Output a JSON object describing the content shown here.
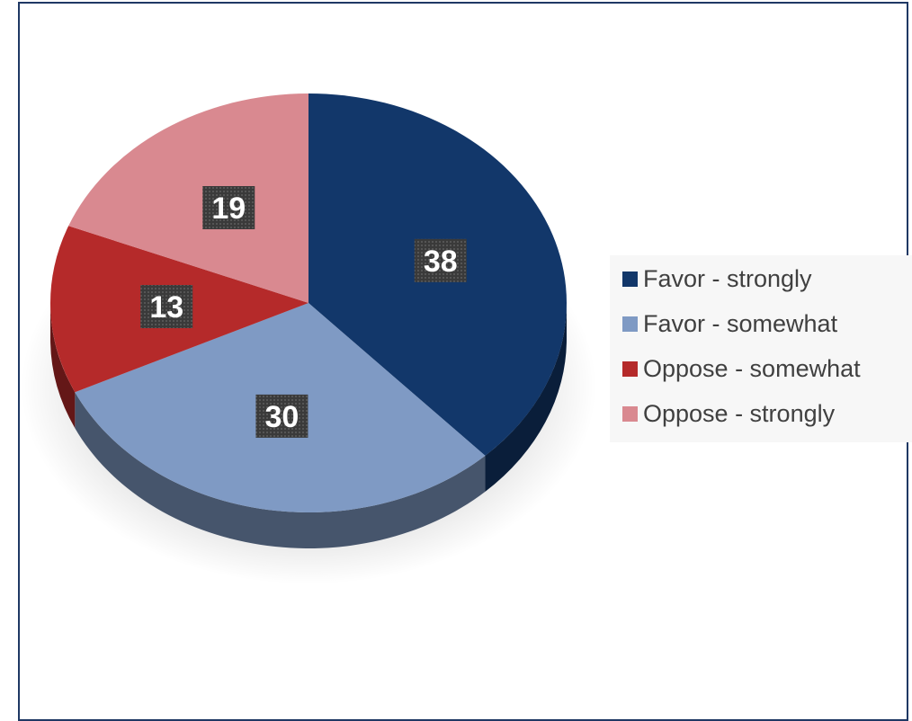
{
  "chart_data": {
    "type": "pie",
    "style": "3d",
    "categories": [
      "Favor - strongly",
      "Favor - somewhat",
      "Oppose - somewhat",
      "Oppose - strongly"
    ],
    "values": [
      38,
      30,
      13,
      19
    ],
    "colors": [
      "#12376a",
      "#7f9ac4",
      "#b52a2a",
      "#d98990"
    ],
    "data_labels": [
      "38",
      "30",
      "13",
      "19"
    ],
    "legend_position": "right",
    "title": ""
  }
}
